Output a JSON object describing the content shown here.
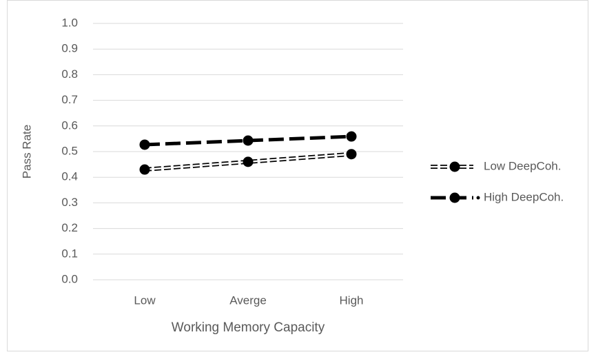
{
  "chart_data": {
    "type": "line",
    "x_label": "Working Memory Capacity",
    "y_label": "Pass Rate",
    "categories": [
      "Low",
      "Averge",
      "High"
    ],
    "series": [
      {
        "name": "Low DeepCoh.",
        "color": "#000000",
        "values": [
          0.43,
          0.46,
          0.49
        ]
      },
      {
        "name": "High DeepCoh.",
        "color": "#000000",
        "values": [
          0.527,
          0.543,
          0.559
        ]
      }
    ],
    "ylim": [
      0,
      1
    ],
    "yticks": [
      {
        "value": 0,
        "label": "0.0"
      },
      0.1,
      0.2,
      0.3,
      0.4,
      0.5,
      0.6,
      0.7,
      0.8,
      0.9,
      {
        "value": 1,
        "label": "1.0"
      }
    ],
    "grid": true,
    "legend": "right"
  }
}
